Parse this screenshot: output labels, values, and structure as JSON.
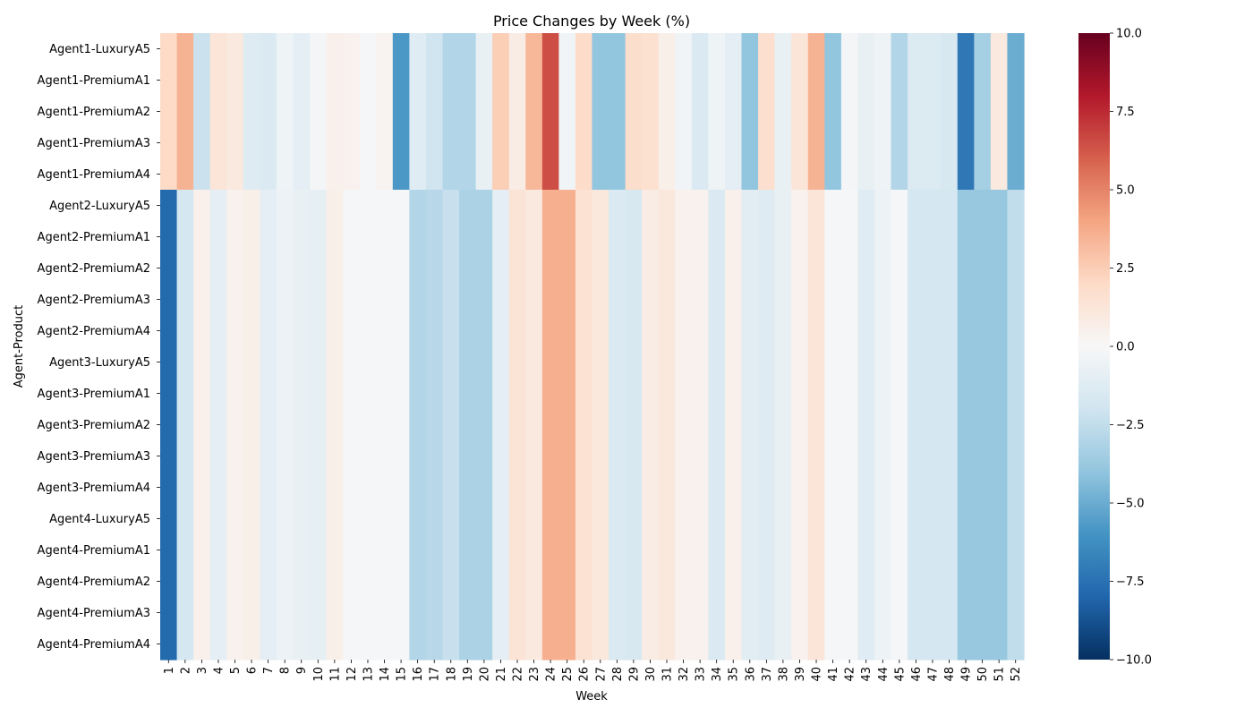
{
  "chart_data": {
    "type": "heatmap",
    "title": "Price Changes by Week (%)",
    "xlabel": "Week",
    "ylabel": "Agent-Product",
    "x": [
      1,
      2,
      3,
      4,
      5,
      6,
      7,
      8,
      9,
      10,
      11,
      12,
      13,
      14,
      15,
      16,
      17,
      18,
      19,
      20,
      21,
      22,
      23,
      24,
      25,
      26,
      27,
      28,
      29,
      30,
      31,
      32,
      33,
      34,
      35,
      36,
      37,
      38,
      39,
      40,
      41,
      42,
      43,
      44,
      45,
      46,
      47,
      48,
      49,
      50,
      51,
      52
    ],
    "y": [
      "Agent1-LuxuryA5",
      "Agent1-PremiumA1",
      "Agent1-PremiumA2",
      "Agent1-PremiumA3",
      "Agent1-PremiumA4",
      "Agent2-LuxuryA5",
      "Agent2-PremiumA1",
      "Agent2-PremiumA2",
      "Agent2-PremiumA3",
      "Agent2-PremiumA4",
      "Agent3-LuxuryA5",
      "Agent3-PremiumA1",
      "Agent3-PremiumA2",
      "Agent3-PremiumA3",
      "Agent3-PremiumA4",
      "Agent4-LuxuryA5",
      "Agent4-PremiumA1",
      "Agent4-PremiumA2",
      "Agent4-PremiumA3",
      "Agent4-PremiumA4"
    ],
    "row_groups": [
      {
        "rows": 5,
        "values": [
          2.0,
          3.5,
          -2.2,
          1.3,
          1.0,
          -1.3,
          -1.5,
          -0.5,
          -1.0,
          -0.2,
          0.5,
          0.4,
          -0.1,
          0.3,
          -5.8,
          -1.2,
          -2.0,
          -3.0,
          -3.0,
          -0.8,
          2.5,
          0.8,
          3.3,
          6.5,
          -0.3,
          1.9,
          -4.0,
          -4.0,
          1.8,
          1.6,
          0.6,
          -0.3,
          -1.5,
          -0.5,
          -1.0,
          -4.0,
          1.7,
          -0.8,
          1.3,
          3.5,
          -4.0,
          -0.2,
          -0.8,
          -0.5,
          -3.0,
          -1.4,
          -1.4,
          -1.7,
          -7.2,
          -3.4,
          1.0,
          -5.0
        ]
      },
      {
        "rows": 15,
        "values": [
          -7.8,
          -1.8,
          0.5,
          -1.0,
          0.4,
          0.6,
          -1.0,
          -0.6,
          -0.8,
          -0.9,
          0.6,
          -0.1,
          -0.1,
          -0.1,
          -0.1,
          -3.0,
          -2.8,
          -2.3,
          -3.2,
          -3.2,
          -1.0,
          1.4,
          1.0,
          3.6,
          3.6,
          1.5,
          1.1,
          -1.5,
          -1.7,
          0.8,
          1.1,
          0.4,
          0.4,
          -1.5,
          0.5,
          -1.1,
          -1.3,
          -0.8,
          0.4,
          1.3,
          -0.1,
          -0.1,
          -1.2,
          -0.6,
          -0.1,
          -1.8,
          -1.8,
          -1.8,
          -3.8,
          -3.8,
          -3.8,
          -2.5
        ]
      }
    ],
    "vmin": -10,
    "vmax": 10,
    "colormap": "RdBu_r",
    "colorbar_ticks": [
      "10.0",
      "7.5",
      "5.0",
      "2.5",
      "0.0",
      "−2.5",
      "−5.0",
      "−7.5",
      "−10.0"
    ],
    "colorbar_tick_values": [
      10,
      7.5,
      5,
      2.5,
      0,
      -2.5,
      -5,
      -7.5,
      -10
    ]
  }
}
